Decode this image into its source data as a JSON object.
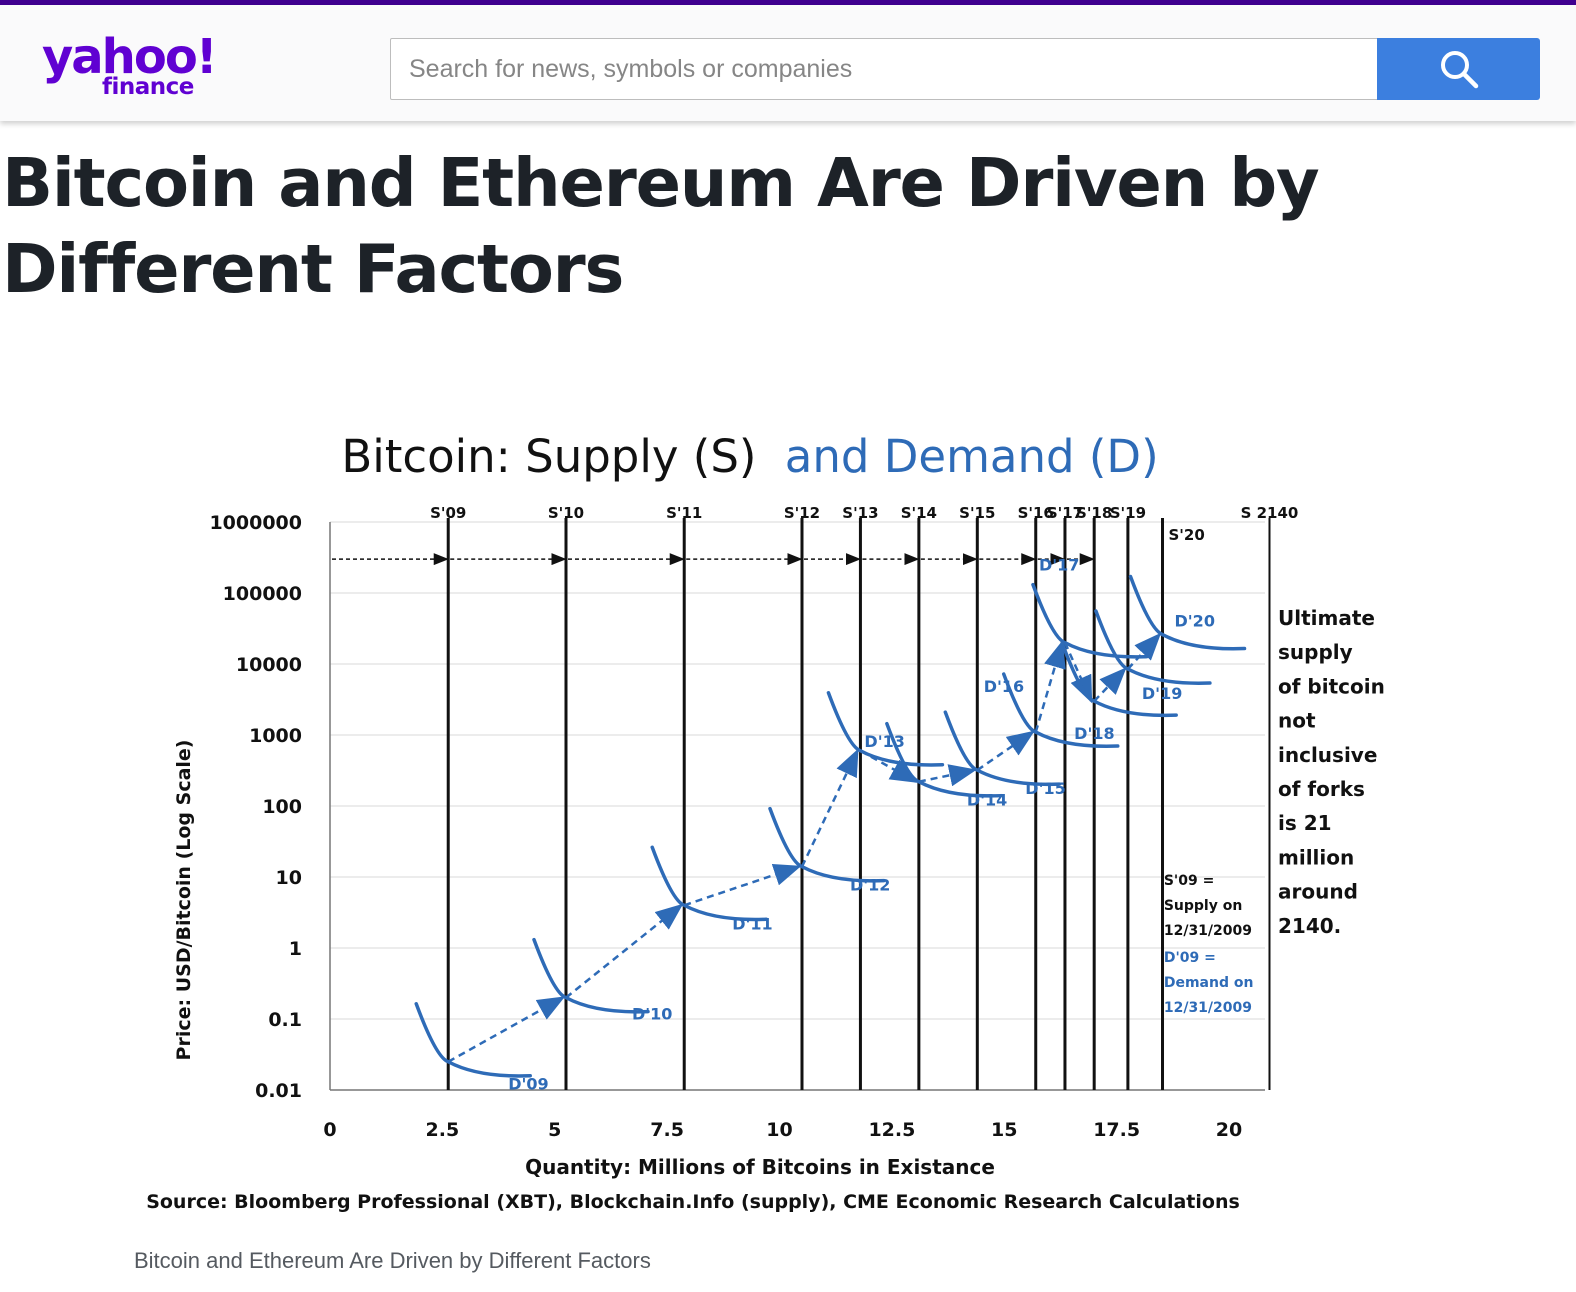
{
  "header": {
    "logo_text": "yahoo!",
    "logo_sub": "finance",
    "search_placeholder": "Search for news, symbols or companies",
    "search_icon": "search-icon",
    "colors": {
      "brand": "#6001d2",
      "stripe": "#400090",
      "search_button": "#3c7fdf"
    }
  },
  "article": {
    "headline": "Bitcoin and Ethereum Are Driven by Different Factors",
    "image_caption": "Bitcoin and Ethereum Are Driven by Different Factors"
  },
  "chart_data": {
    "type": "line",
    "title_part1": "Bitcoin: Supply (S)",
    "title_part2": "and Demand (D)",
    "xlabel": "Quantity:  Millions  of Bitcoins in Existance",
    "ylabel": "Price: USD/Bitcoin (Log Scale)",
    "source": "Source: Bloomberg Professional (XBT), Blockchain.Info (supply), CME Economic Research Calculations",
    "xlim": [
      0,
      20.8
    ],
    "ylim": [
      0.01,
      1000000
    ],
    "y_scale": "log",
    "x_ticks": [
      "0",
      "2.5",
      "5",
      "7.5",
      "10",
      "12.5",
      "15",
      "17.5",
      "20"
    ],
    "x_tick_values": [
      0,
      2.5,
      5,
      7.5,
      10,
      12.5,
      15,
      17.5,
      20
    ],
    "y_ticks": [
      "0.01",
      "0.1",
      "1",
      "10",
      "100",
      "1000",
      "10000",
      "100000",
      "1000000"
    ],
    "y_tick_values": [
      0.01,
      0.1,
      1,
      10,
      100,
      1000,
      10000,
      100000,
      1000000
    ],
    "colors": {
      "supply": "#111111",
      "demand": "#2e6bb7"
    },
    "supply_lines": [
      {
        "label": "S'09",
        "x": 2.63
      },
      {
        "label": "S'10",
        "x": 5.25
      },
      {
        "label": "S'11",
        "x": 7.88
      },
      {
        "label": "S'12",
        "x": 10.5
      },
      {
        "label": "S'13",
        "x": 11.8
      },
      {
        "label": "S'14",
        "x": 13.1
      },
      {
        "label": "S'15",
        "x": 14.4
      },
      {
        "label": "S'16",
        "x": 15.7
      },
      {
        "label": "S'17",
        "x": 16.35
      },
      {
        "label": "S'18",
        "x": 17.0
      },
      {
        "label": "S'19",
        "x": 17.75
      },
      {
        "label": "S'20",
        "x": 18.52
      },
      {
        "label": "S 2140",
        "x": 20.9
      }
    ],
    "supply_arrows_y": 300000,
    "demand_points": [
      {
        "label": "D'09",
        "x": 2.63,
        "y": 0.025
      },
      {
        "label": "D'10",
        "x": 5.25,
        "y": 0.2
      },
      {
        "label": "D'11",
        "x": 7.88,
        "y": 4
      },
      {
        "label": "D'12",
        "x": 10.5,
        "y": 14
      },
      {
        "label": "D'13",
        "x": 11.8,
        "y": 600
      },
      {
        "label": "D'14",
        "x": 13.1,
        "y": 220
      },
      {
        "label": "D'15",
        "x": 14.4,
        "y": 320
      },
      {
        "label": "D'16",
        "x": 15.7,
        "y": 1100
      },
      {
        "label": "D'17",
        "x": 16.35,
        "y": 20000
      },
      {
        "label": "D'18",
        "x": 17.0,
        "y": 3000
      },
      {
        "label": "D'19",
        "x": 17.75,
        "y": 8500
      },
      {
        "label": "D'20",
        "x": 18.52,
        "y": 26000
      }
    ],
    "annotation_supply_def": [
      "S'09 =",
      "Supply on",
      "12/31/2009"
    ],
    "annotation_demand_def": [
      "D'09 =",
      "Demand on",
      "12/31/2009"
    ],
    "annotation_right": [
      "Ultimate",
      "supply",
      "of bitcoin",
      "not",
      "inclusive",
      "of forks",
      "is 21",
      "million",
      "around",
      "2140."
    ]
  }
}
